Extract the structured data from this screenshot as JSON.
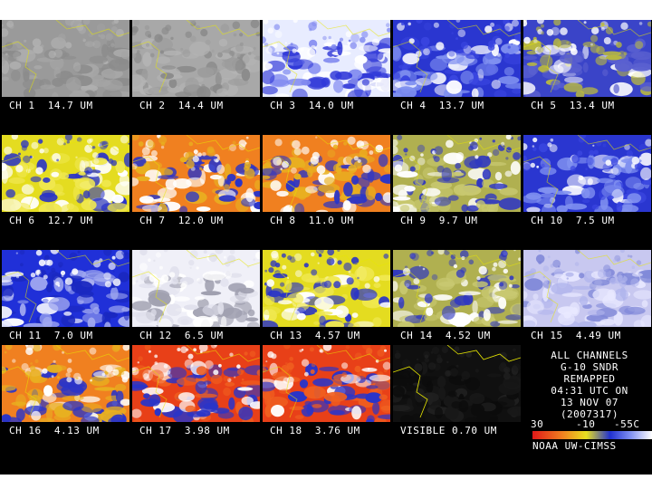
{
  "panels": [
    {
      "label": "CH 1  14.7 UM",
      "palette": "gray"
    },
    {
      "label": "CH 2  14.4 UM",
      "palette": "gray2"
    },
    {
      "label": "CH 3  14.0 UM",
      "palette": "whiteblue"
    },
    {
      "label": "CH 4  13.7 UM",
      "palette": "blue"
    },
    {
      "label": "CH 5  13.4 UM",
      "palette": "blueyellow"
    },
    {
      "label": "CH 6  12.7 UM",
      "palette": "yellowblue"
    },
    {
      "label": "CH 7  12.0 UM",
      "palette": "orangeblue"
    },
    {
      "label": "CH 8  11.0 UM",
      "palette": "orangeblue"
    },
    {
      "label": "CH 9  9.7 UM",
      "palette": "khakiblue"
    },
    {
      "label": "CH 10  7.5 UM",
      "palette": "blue"
    },
    {
      "label": "CH 11  7.0 UM",
      "palette": "deepblue"
    },
    {
      "label": "CH 12  6.5 UM",
      "palette": "whitegray"
    },
    {
      "label": "CH 13  4.57 UM",
      "palette": "yellowblue"
    },
    {
      "label": "CH 14  4.52 UM",
      "palette": "khakiblue"
    },
    {
      "label": "CH 15  4.49 UM",
      "palette": "lavender"
    },
    {
      "label": "CH 16  4.13 UM",
      "palette": "orangeblue"
    },
    {
      "label": "CH 17  3.98 UM",
      "palette": "redblue"
    },
    {
      "label": "CH 18  3.76 UM",
      "palette": "redblue"
    },
    {
      "label": "VISIBLE 0.70 UM",
      "palette": "dark"
    }
  ],
  "info": {
    "line1": "ALL CHANNELS",
    "line2": "G-10 SNDR",
    "line3": "REMAPPED",
    "line4": "04:31 UTC ON",
    "line5": "13 NOV 07",
    "line6": "(2007317)",
    "scale_left": "30",
    "scale_mid": "-10",
    "scale_right": "-55C",
    "credit": "NOAA UW-CIMSS"
  },
  "colors": {
    "background": "#000000",
    "coastline": "#e8e800",
    "text": "#ffffff"
  }
}
